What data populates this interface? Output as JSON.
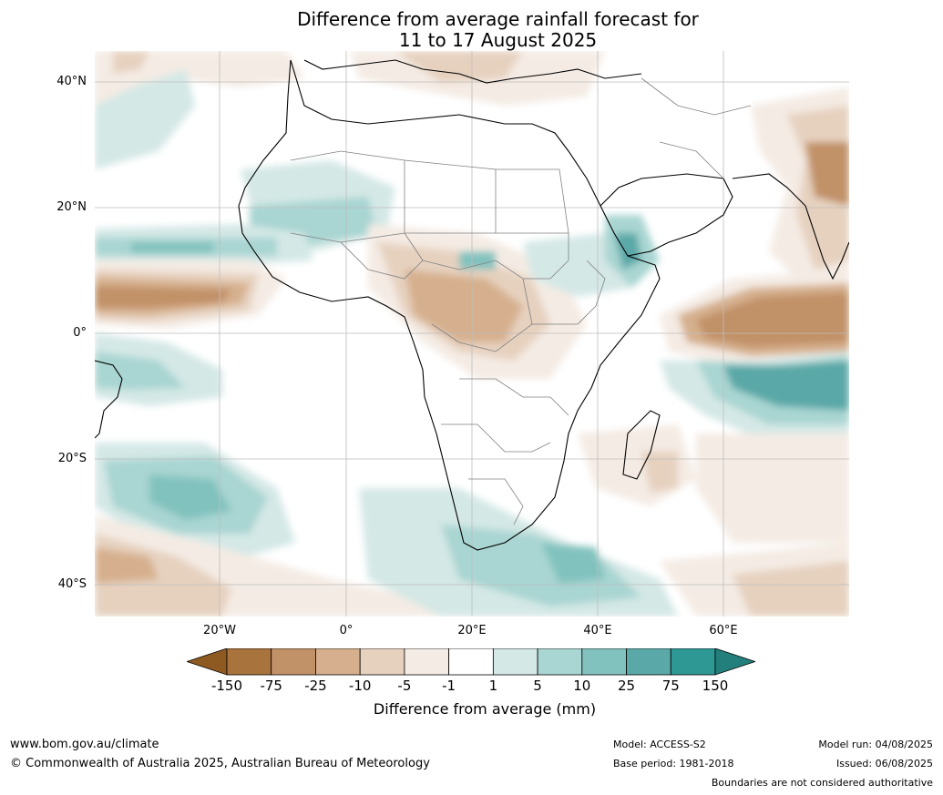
{
  "title_line1": "Difference from average rainfall forecast for",
  "title_line2": "11 to 17 August 2025",
  "lat_labels": [
    "40°N",
    "20°N",
    "0°",
    "20°S",
    "40°S"
  ],
  "lon_labels": [
    "20°W",
    "0°",
    "20°E",
    "40°E",
    "60°E"
  ],
  "colorbar": {
    "title": "Difference from average (mm)",
    "tick_labels": [
      "-150",
      "-75",
      "-25",
      "-10",
      "-5",
      "-1",
      "1",
      "5",
      "10",
      "25",
      "75",
      "150"
    ],
    "colors": [
      "#8e5a22",
      "#a8733c",
      "#c19168",
      "#d6b08e",
      "#e6d1bf",
      "#f4ebe4",
      "#ffffff",
      "#d4e8e6",
      "#a9d5d2",
      "#82c2be",
      "#5aa8a7",
      "#2e9894",
      "#237f7b"
    ]
  },
  "footer": {
    "url": "www.bom.gov.au/climate",
    "copyright": "© Commonwealth of Australia 2025, Australian Bureau of Meteorology",
    "model": "Model: ACCESS-S2",
    "base_period": "Base period: 1981-2018",
    "model_run": "Model run: 04/08/2025",
    "issued": "Issued: 06/08/2025",
    "disclaimer": "Boundaries are not considered authoritative"
  }
}
